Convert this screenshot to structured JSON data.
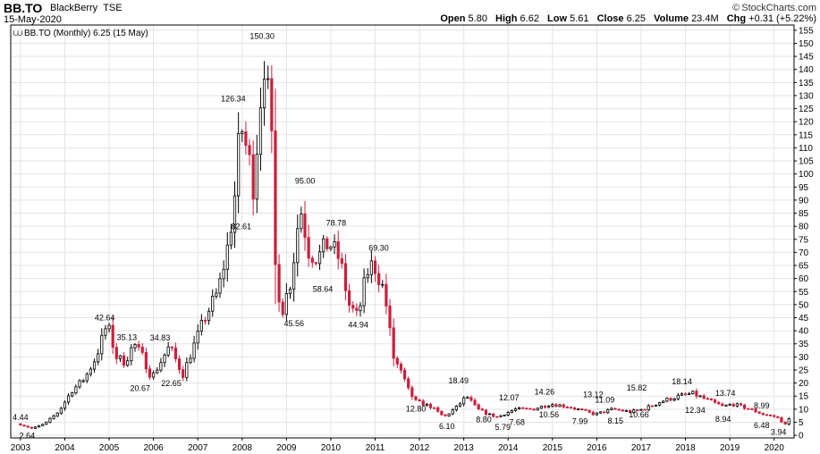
{
  "header": {
    "symbol": "BB.TO",
    "company": "BlackBerry",
    "exchange": "TSE",
    "date": "15-May-2020",
    "brand": "StockCharts.com",
    "quote": {
      "open_label": "Open",
      "open": "5.80",
      "high_label": "High",
      "high": "6.62",
      "low_label": "Low",
      "low": "5.61",
      "close_label": "Close",
      "close": "6.25",
      "volume_label": "Volume",
      "volume": "23.4M",
      "chg_label": "Chg",
      "chg": "+0.31 (+5.22%)"
    }
  },
  "chart_data": {
    "type": "candlestick",
    "legend": "BB.TO (Monthly) 6.25 (15 May)",
    "ylim": [
      -1,
      157
    ],
    "y_ticks": [
      0,
      5,
      10,
      15,
      20,
      25,
      30,
      35,
      40,
      45,
      50,
      55,
      60,
      65,
      70,
      75,
      80,
      85,
      90,
      95,
      100,
      105,
      110,
      115,
      120,
      125,
      130,
      135,
      140,
      145,
      150,
      155
    ],
    "x_ticks": [
      "2003",
      "2004",
      "2005",
      "2006",
      "2007",
      "2008",
      "2009",
      "2010",
      "2011",
      "2012",
      "2013",
      "2014",
      "2015",
      "2016",
      "2017",
      "2018",
      "2019",
      "2020"
    ],
    "up_color": "#000000",
    "down_color": "#cc1f3c",
    "grid": true,
    "price_path": [
      [
        2003.0,
        4.4
      ],
      [
        2003.3,
        2.6
      ],
      [
        2003.6,
        4.5
      ],
      [
        2003.9,
        9
      ],
      [
        2004.2,
        17
      ],
      [
        2004.5,
        22
      ],
      [
        2004.75,
        30
      ],
      [
        2004.9,
        38
      ],
      [
        2005.0,
        42.6
      ],
      [
        2005.2,
        30
      ],
      [
        2005.4,
        28
      ],
      [
        2005.6,
        35
      ],
      [
        2005.8,
        30
      ],
      [
        2006.0,
        22
      ],
      [
        2006.2,
        28
      ],
      [
        2006.4,
        34
      ],
      [
        2006.6,
        27
      ],
      [
        2006.7,
        23
      ],
      [
        2006.9,
        32
      ],
      [
        2007.2,
        45
      ],
      [
        2007.5,
        55
      ],
      [
        2007.75,
        75
      ],
      [
        2007.9,
        95
      ],
      [
        2008.0,
        120
      ],
      [
        2008.2,
        105
      ],
      [
        2008.3,
        95
      ],
      [
        2008.45,
        128
      ],
      [
        2008.55,
        145
      ],
      [
        2008.7,
        115
      ],
      [
        2008.8,
        60
      ],
      [
        2008.95,
        48
      ],
      [
        2009.15,
        60
      ],
      [
        2009.35,
        88
      ],
      [
        2009.55,
        70
      ],
      [
        2009.75,
        68
      ],
      [
        2010.0,
        74
      ],
      [
        2010.25,
        67
      ],
      [
        2010.45,
        50
      ],
      [
        2010.65,
        45
      ],
      [
        2010.85,
        62
      ],
      [
        2011.0,
        66
      ],
      [
        2011.25,
        55
      ],
      [
        2011.45,
        30
      ],
      [
        2011.6,
        25
      ],
      [
        2011.8,
        17
      ],
      [
        2011.95,
        13
      ],
      [
        2012.3,
        11
      ],
      [
        2012.6,
        7
      ],
      [
        2012.9,
        11
      ],
      [
        2013.1,
        15
      ],
      [
        2013.35,
        10
      ],
      [
        2013.6,
        8
      ],
      [
        2013.8,
        7
      ],
      [
        2014.2,
        10
      ],
      [
        2014.6,
        10
      ],
      [
        2015.0,
        12
      ],
      [
        2015.4,
        11
      ],
      [
        2015.8,
        9
      ],
      [
        2016.0,
        8
      ],
      [
        2016.4,
        10
      ],
      [
        2016.8,
        9
      ],
      [
        2017.1,
        10
      ],
      [
        2017.5,
        13
      ],
      [
        2017.9,
        15
      ],
      [
        2018.2,
        16
      ],
      [
        2018.6,
        13
      ],
      [
        2018.9,
        11
      ],
      [
        2019.1,
        12
      ],
      [
        2019.5,
        10
      ],
      [
        2019.8,
        8
      ],
      [
        2020.1,
        7
      ],
      [
        2020.3,
        4
      ],
      [
        2020.37,
        6.25
      ]
    ],
    "annotations": [
      {
        "x": 2003.0,
        "y": 4.44,
        "text": "4.44",
        "pos": "above"
      },
      {
        "x": 2003.15,
        "y": 2.64,
        "text": "2.64",
        "pos": "below"
      },
      {
        "x": 2004.9,
        "y": 42.64,
        "text": "42.64",
        "pos": "above"
      },
      {
        "x": 2005.4,
        "y": 35.13,
        "text": "35.13",
        "pos": "above"
      },
      {
        "x": 2005.7,
        "y": 20.67,
        "text": "20.67",
        "pos": "below"
      },
      {
        "x": 2006.15,
        "y": 34.83,
        "text": "34.83",
        "pos": "above"
      },
      {
        "x": 2006.4,
        "y": 22.65,
        "text": "22.65",
        "pos": "below"
      },
      {
        "x": 2007.8,
        "y": 126.34,
        "text": "126.34",
        "pos": "above"
      },
      {
        "x": 2008.45,
        "y": 150.3,
        "text": "150.30",
        "pos": "above"
      },
      {
        "x": 2007.98,
        "y": 82.61,
        "text": "82.61",
        "pos": "below"
      },
      {
        "x": 2009.17,
        "y": 45.56,
        "text": "45.56",
        "pos": "below"
      },
      {
        "x": 2009.42,
        "y": 95.0,
        "text": "95.00",
        "pos": "above"
      },
      {
        "x": 2009.82,
        "y": 58.64,
        "text": "58.64",
        "pos": "below"
      },
      {
        "x": 2010.12,
        "y": 78.78,
        "text": "78.78",
        "pos": "above"
      },
      {
        "x": 2010.62,
        "y": 44.94,
        "text": "44.94",
        "pos": "below"
      },
      {
        "x": 2011.08,
        "y": 69.3,
        "text": "69.30",
        "pos": "above"
      },
      {
        "x": 2011.92,
        "y": 12.8,
        "text": "12.80",
        "pos": "below"
      },
      {
        "x": 2012.62,
        "y": 6.1,
        "text": "6.10",
        "pos": "below"
      },
      {
        "x": 2012.88,
        "y": 18.49,
        "text": "18.49",
        "pos": "above"
      },
      {
        "x": 2013.45,
        "y": 8.8,
        "text": "8.80",
        "pos": "below"
      },
      {
        "x": 2013.88,
        "y": 5.79,
        "text": "5.79",
        "pos": "below"
      },
      {
        "x": 2014.2,
        "y": 7.68,
        "text": "7.68",
        "pos": "below"
      },
      {
        "x": 2014.02,
        "y": 12.07,
        "text": "12.07",
        "pos": "above"
      },
      {
        "x": 2014.82,
        "y": 14.26,
        "text": "14.26",
        "pos": "above"
      },
      {
        "x": 2014.92,
        "y": 10.56,
        "text": "10.56",
        "pos": "below"
      },
      {
        "x": 2015.62,
        "y": 7.99,
        "text": "7.99",
        "pos": "below"
      },
      {
        "x": 2015.92,
        "y": 13.12,
        "text": "13.12",
        "pos": "above"
      },
      {
        "x": 2016.18,
        "y": 11.09,
        "text": "11.09",
        "pos": "above"
      },
      {
        "x": 2016.42,
        "y": 8.15,
        "text": "8.15",
        "pos": "below"
      },
      {
        "x": 2016.9,
        "y": 15.82,
        "text": "15.82",
        "pos": "above"
      },
      {
        "x": 2016.95,
        "y": 10.66,
        "text": "10.66",
        "pos": "below"
      },
      {
        "x": 2017.92,
        "y": 18.14,
        "text": "18.14",
        "pos": "above"
      },
      {
        "x": 2018.22,
        "y": 12.34,
        "text": "12.34",
        "pos": "below"
      },
      {
        "x": 2018.9,
        "y": 13.74,
        "text": "13.74",
        "pos": "above"
      },
      {
        "x": 2018.85,
        "y": 8.94,
        "text": "8.94",
        "pos": "below"
      },
      {
        "x": 2019.72,
        "y": 8.99,
        "text": "8.99",
        "pos": "above"
      },
      {
        "x": 2019.72,
        "y": 6.48,
        "text": "6.48",
        "pos": "below"
      },
      {
        "x": 2020.1,
        "y": 3.94,
        "text": "3.94",
        "pos": "below"
      }
    ]
  }
}
